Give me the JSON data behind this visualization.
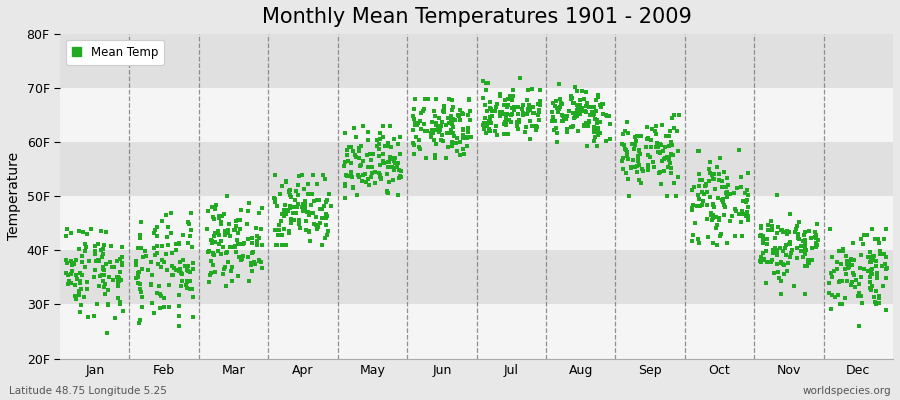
{
  "title": "Monthly Mean Temperatures 1901 - 2009",
  "ylabel": "Temperature",
  "xlabel_labels": [
    "Jan",
    "Feb",
    "Mar",
    "Apr",
    "May",
    "Jun",
    "Jul",
    "Aug",
    "Sep",
    "Oct",
    "Nov",
    "Dec"
  ],
  "ylim": [
    20,
    80
  ],
  "yticks": [
    20,
    30,
    40,
    50,
    60,
    70,
    80
  ],
  "ytick_labels": [
    "20F",
    "30F",
    "40F",
    "50F",
    "60F",
    "70F",
    "80F"
  ],
  "dot_color": "#22aa22",
  "background_color": "#e8e8e8",
  "band_color_white": "#f5f5f5",
  "band_color_gray": "#e0e0e0",
  "title_fontsize": 15,
  "legend_label": "Mean Temp",
  "footer_left": "Latitude 48.75 Longitude 5.25",
  "footer_right": "worldspecies.org",
  "monthly_means_F": [
    36.5,
    36.0,
    41.5,
    47.5,
    55.5,
    62.5,
    65.5,
    65.0,
    58.0,
    49.0,
    40.5,
    36.5
  ],
  "monthly_stds_F": [
    4.5,
    5.0,
    3.5,
    3.5,
    3.5,
    3.0,
    2.5,
    2.5,
    3.5,
    3.5,
    3.5,
    4.0
  ],
  "monthly_mins_F": [
    22,
    22,
    33,
    41,
    46,
    57,
    59,
    59,
    50,
    41,
    32,
    26
  ],
  "monthly_maxs_F": [
    44,
    47,
    50,
    54,
    63,
    68,
    73,
    72,
    65,
    60,
    57,
    44
  ],
  "n_years": 109,
  "seed": 42,
  "figsize": [
    9.0,
    4.0
  ],
  "dpi": 100
}
